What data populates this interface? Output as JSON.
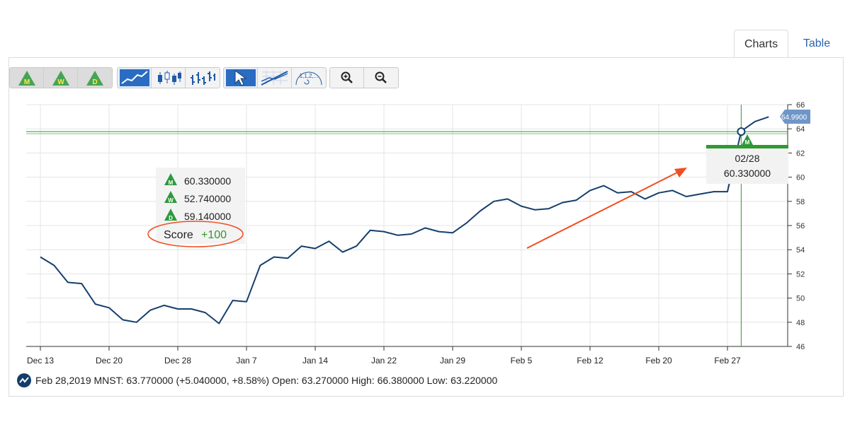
{
  "tabs": [
    {
      "label": "Charts",
      "active": true
    },
    {
      "label": "Table",
      "active": false
    }
  ],
  "toolbar": {
    "rating_buttons": [
      {
        "letter": "M",
        "icon": "monthly-rating-icon"
      },
      {
        "letter": "W",
        "icon": "weekly-rating-icon"
      },
      {
        "letter": "D",
        "icon": "daily-rating-icon"
      }
    ],
    "chart_type_buttons": [
      "line-chart-icon",
      "candlestick-chart-icon",
      "ohlc-bar-chart-icon"
    ],
    "tool_buttons": [
      "pointer-icon",
      "trendline-icon",
      "fibonacci-icon"
    ],
    "fib_label": "1,1,2,...",
    "zoom_buttons": [
      "zoom-in-icon",
      "zoom-out-icon"
    ]
  },
  "tooltip": {
    "ratings": [
      {
        "letter": "M",
        "value": "60.330000"
      },
      {
        "letter": "W",
        "value": "52.740000"
      },
      {
        "letter": "D",
        "value": "59.140000"
      }
    ],
    "score_label": "Score",
    "score_value": "+100"
  },
  "crosshair": {
    "date": "02/28",
    "value": "60.330000",
    "marker_letter": "M"
  },
  "last_price_tag": "64.9900",
  "footer": {
    "text": "Feb 28,2019 MNST: 63.770000 (+5.040000, +8.58%) Open: 63.270000 High: 66.380000 Low: 63.220000"
  },
  "colors": {
    "line": "#163f6e",
    "crosshair": "#2f9a2f",
    "rating": "#2d9a3c",
    "annotation": "#f04e23",
    "price_tag": "#6f96c9"
  },
  "chart_data": {
    "type": "line",
    "title": "",
    "xlabel": "",
    "ylabel": "",
    "ylim": [
      46,
      66
    ],
    "y_ticks": [
      46,
      48,
      50,
      52,
      54,
      56,
      58,
      60,
      62,
      64,
      66
    ],
    "x_tick_labels": [
      {
        "label": "Dec 13",
        "index": 0
      },
      {
        "label": "Dec 20",
        "index": 5
      },
      {
        "label": "Dec 28",
        "index": 10
      },
      {
        "label": "Jan 7",
        "index": 15
      },
      {
        "label": "Jan 14",
        "index": 20
      },
      {
        "label": "Jan 22",
        "index": 25
      },
      {
        "label": "Jan 29",
        "index": 30
      },
      {
        "label": "Feb 5",
        "index": 35
      },
      {
        "label": "Feb 12",
        "index": 40
      },
      {
        "label": "Feb 20",
        "index": 45
      },
      {
        "label": "Feb 27",
        "index": 50
      }
    ],
    "grid": true,
    "series": [
      {
        "values": [
          53.4,
          52.7,
          51.3,
          51.2,
          49.5,
          49.2,
          48.2,
          48.0,
          49.0,
          49.4,
          49.1,
          49.1,
          48.8,
          47.9,
          49.8,
          49.7,
          52.7,
          53.4,
          53.3,
          54.3,
          54.1,
          54.7,
          53.8,
          54.3,
          55.6,
          55.5,
          55.2,
          55.3,
          55.8,
          55.5,
          55.4,
          56.2,
          57.2,
          58.0,
          58.2,
          57.6,
          57.3,
          57.4,
          57.9,
          58.1,
          58.9,
          59.3,
          58.7,
          58.8,
          58.2,
          58.7,
          58.9,
          58.4,
          58.6,
          58.8,
          58.8,
          63.8,
          64.6,
          64.99
        ]
      }
    ],
    "crosshair_index": 51,
    "crosshair_value": 63.77,
    "annotation_arrow": true
  }
}
